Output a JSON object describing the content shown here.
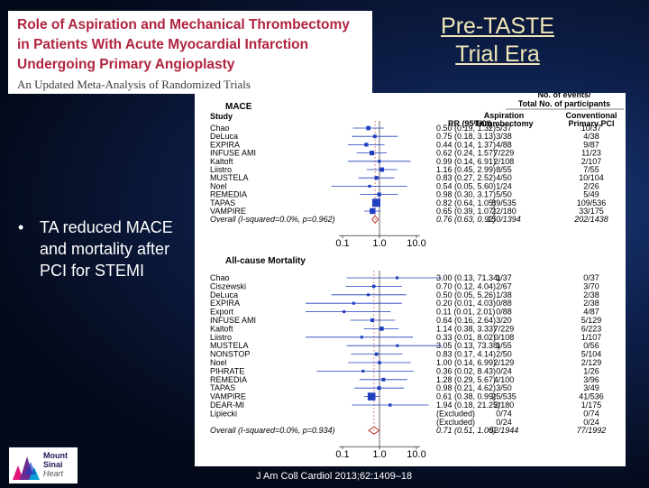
{
  "title": {
    "lines": [
      "Role of Aspiration and Mechanical Thrombectomy",
      "in Patients With Acute Myocardial Infarction",
      "Undergoing Primary Angioplasty"
    ],
    "subtitle": "An Updated Meta-Analysis of Randomized Trials"
  },
  "era_label": [
    "Pre-TASTE",
    "Trial Era"
  ],
  "bullet": "TA reduced MACE and mortality after PCI for STEMI",
  "logo_text": [
    "Mount",
    "Sinai",
    "Heart"
  ],
  "citation": "J Am Coll Cardiol 2013;62:1409–18",
  "colors": {
    "title_red": "#b0243f",
    "era_text": "#f0e6b8",
    "marker_blue": "#1f3fbf",
    "overall_red": "#c0392b"
  },
  "figure": {
    "events_header": [
      "No. of events/",
      "Total No. of participants"
    ],
    "col_headers": {
      "study": "Study",
      "rr": "RR (95%CI)",
      "asp": [
        "Aspiration",
        "Thrombectomy"
      ],
      "conv": [
        "Conventional",
        "Primary PCI"
      ]
    },
    "axis_ticks": [
      "0.1",
      "1.0",
      "10.0"
    ],
    "panels": [
      {
        "label": "MACE",
        "rows": [
          {
            "study": "Chao",
            "rr": "0.50 (0.19, 1.32)",
            "a": "5/37",
            "c": "10/37",
            "est": 0.5,
            "lo": 0.19,
            "hi": 1.32,
            "w": 1.2
          },
          {
            "study": "DeLuca",
            "rr": "0.75 (0.18, 3.13)",
            "a": "3/38",
            "c": "4/38",
            "est": 0.75,
            "lo": 0.18,
            "hi": 3.13,
            "w": 0.8
          },
          {
            "study": "EXPIRA",
            "rr": "0.44 (0.14, 1.37)",
            "a": "4/88",
            "c": "9/87",
            "est": 0.44,
            "lo": 0.14,
            "hi": 1.37,
            "w": 1.0
          },
          {
            "study": "INFUSE AMI",
            "rr": "0.62 (0.24, 1.57)",
            "a": "7/229",
            "c": "11/23",
            "est": 0.62,
            "lo": 0.24,
            "hi": 1.57,
            "w": 1.4
          },
          {
            "study": "Kaltoft",
            "rr": "0.99 (0.14, 6.91)",
            "a": "2/108",
            "c": "2/107",
            "est": 0.99,
            "lo": 0.14,
            "hi": 6.91,
            "w": 0.6
          },
          {
            "study": "Liistro",
            "rr": "1.16 (0.45, 2.99)",
            "a": "8/55",
            "c": "7/55",
            "est": 1.16,
            "lo": 0.45,
            "hi": 2.99,
            "w": 1.3
          },
          {
            "study": "MUSTELA",
            "rr": "0.83 (0.27, 2.52)",
            "a": "4/50",
            "c": "10/104",
            "est": 0.83,
            "lo": 0.27,
            "hi": 2.52,
            "w": 1.0
          },
          {
            "study": "Noel",
            "rr": "0.54 (0.05, 5.60)",
            "a": "1/24",
            "c": "2/26",
            "est": 0.54,
            "lo": 0.05,
            "hi": 5.6,
            "w": 0.5
          },
          {
            "study": "REMEDIA",
            "rr": "0.98 (0.30, 3.17)",
            "a": "5/50",
            "c": "5/49",
            "est": 0.98,
            "lo": 0.3,
            "hi": 3.17,
            "w": 1.0
          },
          {
            "study": "TAPAS",
            "rr": "0.82 (0.64, 1.05)",
            "a": "89/535",
            "c": "109/536",
            "est": 0.82,
            "lo": 0.64,
            "hi": 1.05,
            "w": 3.2
          },
          {
            "study": "VAMPIRE",
            "rr": "0.65 (0.39, 1.07)",
            "a": "22/180",
            "c": "33/175",
            "est": 0.65,
            "lo": 0.39,
            "hi": 1.07,
            "w": 2.0
          }
        ],
        "overall": {
          "study": "Overall (I-squared=0.0%, p=0.962)",
          "rr": "0.76 (0.63, 0.92)",
          "a": "150/1394",
          "c": "202/1438",
          "est": 0.76,
          "lo": 0.63,
          "hi": 0.92
        }
      },
      {
        "label": "All-cause Mortality",
        "rows": [
          {
            "study": "Chao",
            "rr": "3.00 (0.13, 71.34)",
            "a": "1/37",
            "c": "0/37",
            "est": 3.0,
            "lo": 0.13,
            "hi": 71.34,
            "w": 0.5
          },
          {
            "study": "Ciszewski",
            "rr": "0.70 (0.12, 4.04)",
            "a": "2/67",
            "c": "3/70",
            "est": 0.7,
            "lo": 0.12,
            "hi": 4.04,
            "w": 0.7
          },
          {
            "study": "DeLuca",
            "rr": "0.50 (0.05, 5.26)",
            "a": "1/38",
            "c": "2/38",
            "est": 0.5,
            "lo": 0.05,
            "hi": 5.26,
            "w": 0.5
          },
          {
            "study": "EXPIRA",
            "rr": "0.20 (0.01, 4.03)",
            "a": "0/88",
            "c": "2/38",
            "est": 0.2,
            "lo": 0.01,
            "hi": 4.03,
            "w": 0.5
          },
          {
            "study": "Export",
            "rr": "0.11 (0.01, 2.01)",
            "a": "0/88",
            "c": "4/87",
            "est": 0.11,
            "lo": 0.01,
            "hi": 2.01,
            "w": 0.5
          },
          {
            "study": "INFUSE AMI",
            "rr": "0.64 (0.16, 2.64)",
            "a": "3/20",
            "c": "5/129",
            "est": 0.64,
            "lo": 0.16,
            "hi": 2.64,
            "w": 0.9
          },
          {
            "study": "Kaltoft",
            "rr": "1.14 (0.38, 3.33)",
            "a": "7/229",
            "c": "6/223",
            "est": 1.14,
            "lo": 0.38,
            "hi": 3.33,
            "w": 1.2
          },
          {
            "study": "Liistro",
            "rr": "0.33 (0.01, 8.02)",
            "a": "0/108",
            "c": "1/107",
            "est": 0.33,
            "lo": 0.01,
            "hi": 8.02,
            "w": 0.5
          },
          {
            "study": "MUSTELA",
            "rr": "3.05 (0.13, 73.38)",
            "a": "1/55",
            "c": "0/56",
            "est": 3.05,
            "lo": 0.13,
            "hi": 73.38,
            "w": 0.5
          },
          {
            "study": "NONSTOP",
            "rr": "0.83 (0.17, 4.14)",
            "a": "2/50",
            "c": "5/104",
            "est": 0.83,
            "lo": 0.17,
            "hi": 4.14,
            "w": 0.8
          },
          {
            "study": "Noel",
            "rr": "1.00 (0.14, 6.99)",
            "a": "2/129",
            "c": "2/129",
            "est": 1.0,
            "lo": 0.14,
            "hi": 6.99,
            "w": 0.7
          },
          {
            "study": "PIHRATE",
            "rr": "0.36 (0.02, 8.43)",
            "a": "0/24",
            "c": "1/26",
            "est": 0.36,
            "lo": 0.02,
            "hi": 8.43,
            "w": 0.5
          },
          {
            "study": "REMEDIA",
            "rr": "1.28 (0.29, 5.67)",
            "a": "4/100",
            "c": "3/96",
            "est": 1.28,
            "lo": 0.29,
            "hi": 5.67,
            "w": 0.9
          },
          {
            "study": "TAPAS",
            "rr": "0.98 (0.21, 4.62)",
            "a": "3/50",
            "c": "3/49",
            "est": 0.98,
            "lo": 0.21,
            "hi": 4.62,
            "w": 0.9
          },
          {
            "study": "VAMPIRE",
            "rr": "0.61 (0.38, 0.99)",
            "a": "25/535",
            "c": "41/536",
            "est": 0.61,
            "lo": 0.38,
            "hi": 0.99,
            "w": 3.0
          },
          {
            "study": "DEAR-MI",
            "rr": "1.94 (0.18, 21.25)",
            "a": "2/180",
            "c": "1/175",
            "est": 1.94,
            "lo": 0.18,
            "hi": 21.25,
            "w": 0.6
          },
          {
            "study": "Lipiecki",
            "rr": "(Excluded)",
            "a": "0/74",
            "c": "0/74"
          },
          {
            "study": "",
            "rr": "(Excluded)",
            "a": "0/24",
            "c": "0/24"
          }
        ],
        "overall": {
          "study": "Overall (I-squared=0.0%, p=0.934)",
          "rr": "0.71 (0.51, 1.00)",
          "a": "52/1944",
          "c": "77/1992",
          "est": 0.71,
          "lo": 0.51,
          "hi": 1.0
        }
      }
    ]
  }
}
